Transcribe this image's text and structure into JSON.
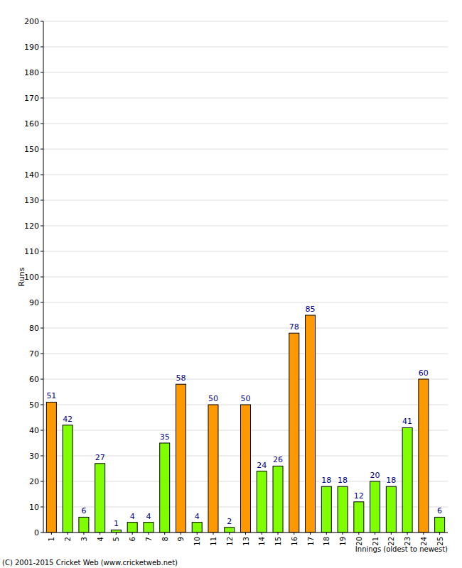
{
  "chart_data": {
    "type": "bar",
    "categories": [
      "1",
      "2",
      "3",
      "4",
      "5",
      "6",
      "7",
      "8",
      "9",
      "10",
      "11",
      "12",
      "13",
      "14",
      "15",
      "16",
      "17",
      "18",
      "19",
      "20",
      "21",
      "22",
      "23",
      "24",
      "25"
    ],
    "values": [
      51,
      42,
      6,
      27,
      1,
      4,
      4,
      35,
      58,
      4,
      50,
      2,
      50,
      24,
      26,
      78,
      85,
      18,
      18,
      12,
      20,
      18,
      41,
      60,
      6
    ],
    "colors": [
      "#ff9900",
      "#80ff00",
      "#80ff00",
      "#80ff00",
      "#80ff00",
      "#80ff00",
      "#80ff00",
      "#80ff00",
      "#ff9900",
      "#80ff00",
      "#ff9900",
      "#80ff00",
      "#ff9900",
      "#80ff00",
      "#80ff00",
      "#ff9900",
      "#ff9900",
      "#80ff00",
      "#80ff00",
      "#80ff00",
      "#80ff00",
      "#80ff00",
      "#80ff00",
      "#ff9900",
      "#80ff00"
    ],
    "x_label": "Innings (oldest to newest)",
    "y_label": "Runs",
    "annotations": [
      "(C) 2001-2015 Cricket Web (www.cricketweb.net)"
    ],
    "ylim": [
      0,
      200
    ],
    "yticks": [
      0,
      10,
      20,
      30,
      40,
      50,
      60,
      70,
      80,
      90,
      100,
      110,
      120,
      130,
      140,
      150,
      160,
      170,
      180,
      190,
      200
    ],
    "grid": true,
    "data_labels": true
  }
}
